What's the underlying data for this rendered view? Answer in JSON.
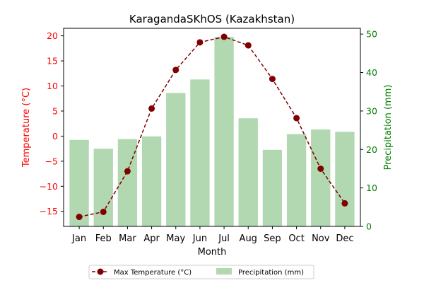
{
  "chart_data": {
    "type": "bar+line",
    "title": "KaragandaSKhOS (Kazakhstan)",
    "xlabel": "Month",
    "ylabel_left": "Temperature (°C)",
    "ylabel_right": "Precipitation (mm)",
    "categories": [
      "Jan",
      "Feb",
      "Mar",
      "Apr",
      "May",
      "Jun",
      "Jul",
      "Aug",
      "Sep",
      "Oct",
      "Nov",
      "Dec"
    ],
    "left_axis": {
      "range": [
        -18,
        21.5
      ],
      "ticks": [
        -15,
        -10,
        -5,
        0,
        5,
        10,
        15,
        20
      ]
    },
    "right_axis": {
      "range": [
        0,
        51.5
      ],
      "ticks": [
        0,
        10,
        20,
        30,
        40,
        50
      ]
    },
    "series": [
      {
        "name": "Max Temperature (°C)",
        "type": "line",
        "axis": "left",
        "color": "#800000",
        "line_style": "dashed",
        "marker": "circle",
        "values": [
          -16.1,
          -15.1,
          -7.0,
          5.5,
          13.2,
          18.7,
          19.8,
          18.1,
          11.4,
          3.6,
          -6.5,
          -13.4
        ]
      },
      {
        "name": "Precipitation (mm)",
        "type": "bar",
        "axis": "right",
        "color": "#b2d8b2",
        "values": [
          22.5,
          20.2,
          22.7,
          23.4,
          34.7,
          38.2,
          49.3,
          28.1,
          19.9,
          24.0,
          25.2,
          24.6
        ]
      }
    ],
    "colors": {
      "left_axis": "#ff0000",
      "right_axis": "#008000",
      "axes": "#000000"
    },
    "legend": {
      "placement": "bottom-center-outside",
      "columns": 2
    },
    "grid": false
  }
}
